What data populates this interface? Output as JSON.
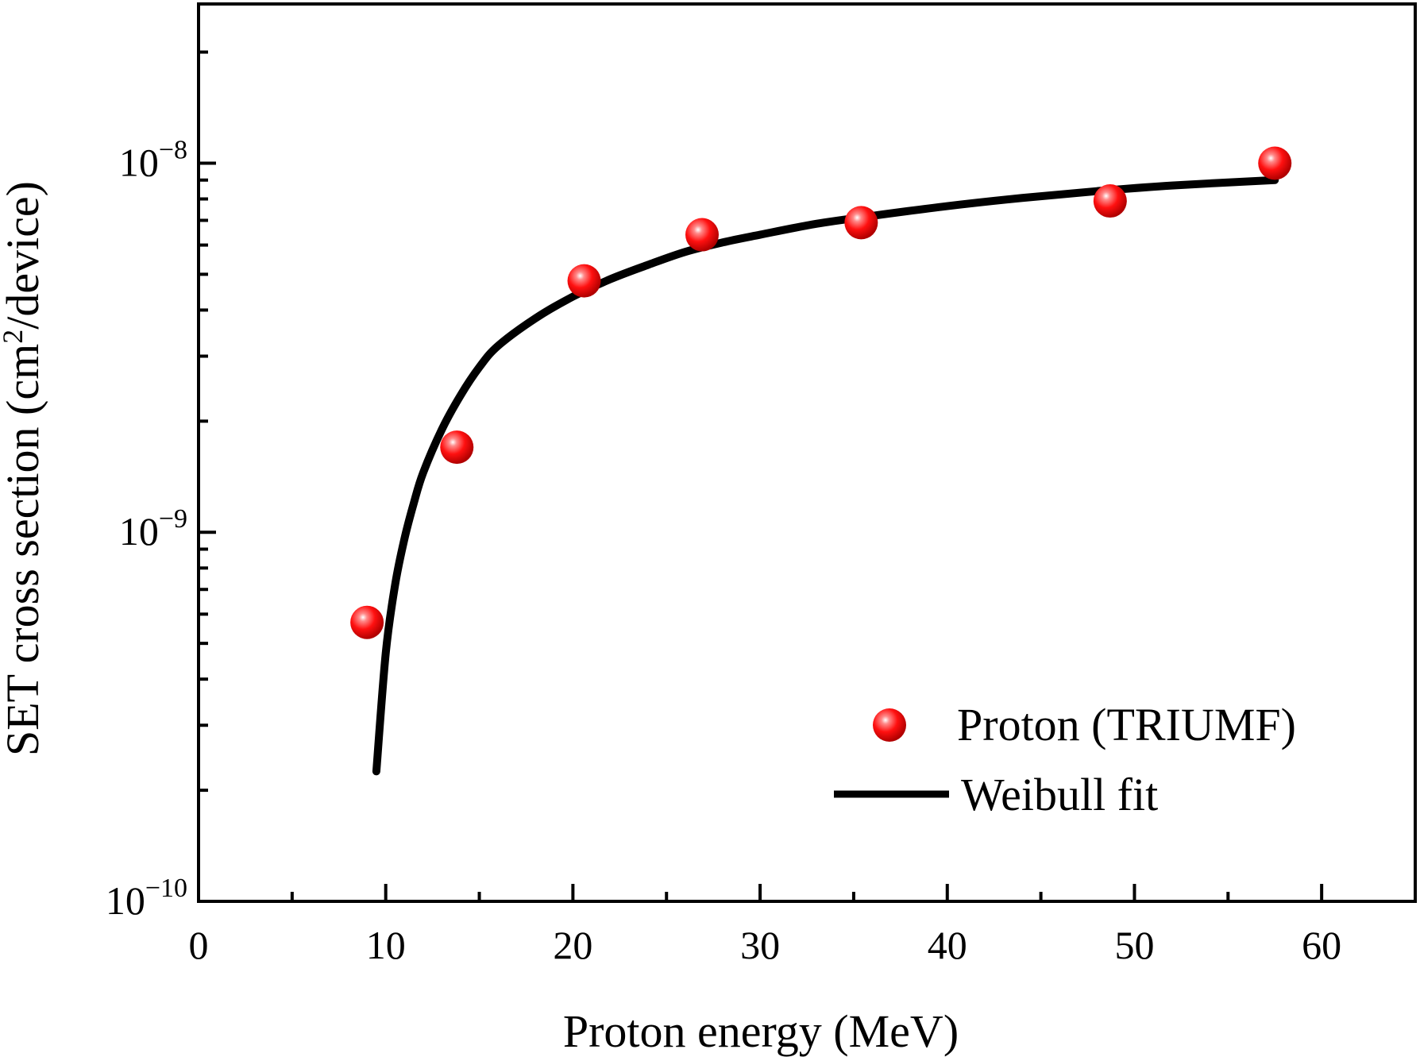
{
  "chart_data": {
    "type": "scatter",
    "x_axis": {
      "label": "Proton energy (MeV)",
      "range": [
        0,
        65
      ],
      "major_ticks": [
        0,
        10,
        20,
        30,
        40,
        50,
        60
      ],
      "tick_labels": [
        "0",
        "10",
        "20",
        "30",
        "40",
        "50",
        "60"
      ],
      "minor_ticks": [
        5,
        15,
        25,
        35,
        45,
        55
      ]
    },
    "y_axis": {
      "label_prefix": "SET cross section (cm",
      "label_sup": "2",
      "label_suffix": "/device)",
      "scale": "log",
      "range": [
        1e-10,
        2.7e-08
      ],
      "major_ticks": [
        1e-10,
        1e-09,
        1e-08
      ],
      "tick_labels": [
        {
          "base": "10",
          "exp": "−10"
        },
        {
          "base": "10",
          "exp": "−9"
        },
        {
          "base": "10",
          "exp": "−8"
        }
      ]
    },
    "series": [
      {
        "name": "Proton (TRIUMF)",
        "kind": "points",
        "color": "#ff1010",
        "points": [
          {
            "x": 9.0,
            "y": 5.7e-10
          },
          {
            "x": 13.8,
            "y": 1.7e-09
          },
          {
            "x": 20.6,
            "y": 4.8e-09
          },
          {
            "x": 26.9,
            "y": 6.4e-09
          },
          {
            "x": 35.4,
            "y": 6.9e-09
          },
          {
            "x": 48.7,
            "y": 7.9e-09
          },
          {
            "x": 57.5,
            "y": 1e-08
          }
        ]
      },
      {
        "name": "Weibull fit",
        "kind": "line",
        "color": "#000000",
        "points": [
          {
            "x": 9.5,
            "y": 2.25e-10
          },
          {
            "x": 10.0,
            "y": 4.7e-10
          },
          {
            "x": 10.5,
            "y": 7.2e-10
          },
          {
            "x": 11.0,
            "y": 9.6e-10
          },
          {
            "x": 11.5,
            "y": 1.2e-09
          },
          {
            "x": 12.0,
            "y": 1.45e-09
          },
          {
            "x": 13.0,
            "y": 1.9e-09
          },
          {
            "x": 14.0,
            "y": 2.35e-09
          },
          {
            "x": 15.0,
            "y": 2.8e-09
          },
          {
            "x": 16.0,
            "y": 3.2e-09
          },
          {
            "x": 18.0,
            "y": 3.8e-09
          },
          {
            "x": 20.0,
            "y": 4.35e-09
          },
          {
            "x": 22.0,
            "y": 4.85e-09
          },
          {
            "x": 24.0,
            "y": 5.3e-09
          },
          {
            "x": 26.0,
            "y": 5.75e-09
          },
          {
            "x": 28.0,
            "y": 6.1e-09
          },
          {
            "x": 30.0,
            "y": 6.4e-09
          },
          {
            "x": 33.0,
            "y": 6.85e-09
          },
          {
            "x": 36.0,
            "y": 7.2e-09
          },
          {
            "x": 40.0,
            "y": 7.65e-09
          },
          {
            "x": 44.0,
            "y": 8.05e-09
          },
          {
            "x": 48.0,
            "y": 8.4e-09
          },
          {
            "x": 52.0,
            "y": 8.7e-09
          },
          {
            "x": 57.5,
            "y": 9e-09
          }
        ]
      }
    ],
    "legend": {
      "position": "bottom-right",
      "items": [
        "Proton (TRIUMF)",
        "Weibull fit"
      ]
    },
    "grid": false
  }
}
